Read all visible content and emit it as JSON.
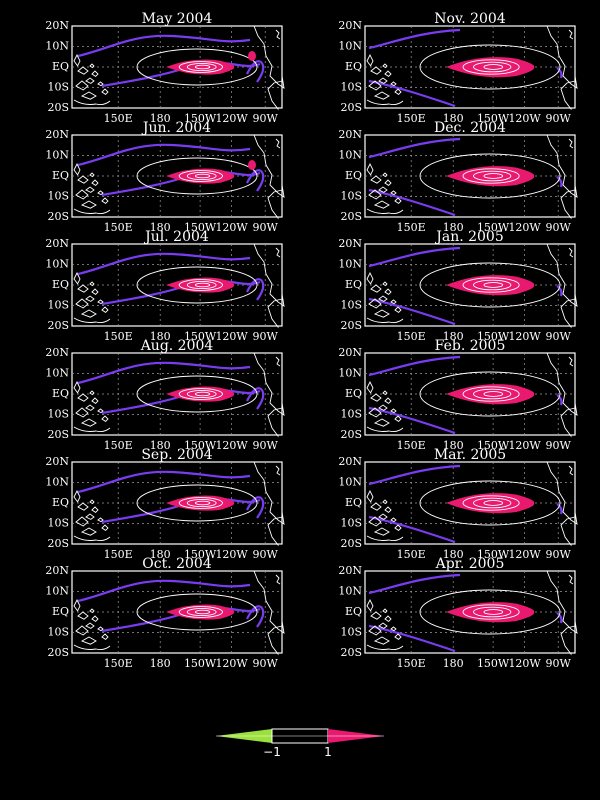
{
  "panels": [
    {
      "title": "May 2004",
      "variant": 0
    },
    {
      "title": "Nov. 2004",
      "variant": 1
    },
    {
      "title": "Jun. 2004",
      "variant": 0
    },
    {
      "title": "Dec. 2004",
      "variant": 1
    },
    {
      "title": "Jul. 2004",
      "variant": 0
    },
    {
      "title": "Jan. 2005",
      "variant": 1
    },
    {
      "title": "Aug. 2004",
      "variant": 0
    },
    {
      "title": "Feb. 2005",
      "variant": 1
    },
    {
      "title": "Sep. 2004",
      "variant": 0
    },
    {
      "title": "Mar. 2005",
      "variant": 1
    },
    {
      "title": "Oct. 2004",
      "variant": 0
    },
    {
      "title": "Apr. 2005",
      "variant": 1
    }
  ],
  "lat_labels": [
    "20N",
    "10N",
    "EQ",
    "10S",
    "20S"
  ],
  "lon_labels": [
    "150E",
    "180",
    "150W",
    "120W",
    "90W"
  ],
  "colorbar": {
    "labels": [
      "−1",
      "1"
    ],
    "neg_color": "#9be03c",
    "pos_color": "#e8196e",
    "mid_color": "#000000"
  },
  "colors": {
    "negative_contour": "#7a3cf0",
    "positive_fill": "#e8196e",
    "background": "#000000"
  }
}
